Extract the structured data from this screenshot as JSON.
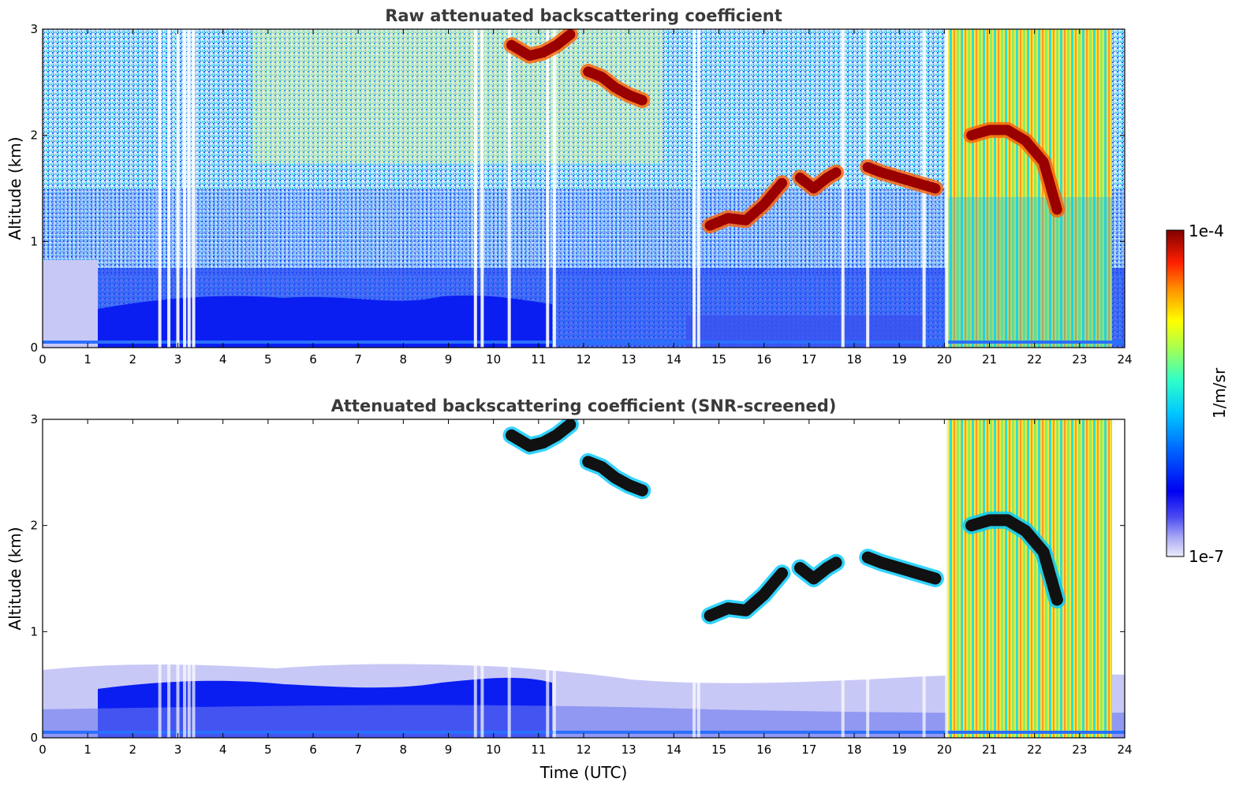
{
  "chart_data": [
    {
      "type": "heatmap",
      "title": "Raw attenuated backscattering coefficient",
      "xlabel": "",
      "ylabel": "Altitude (km)",
      "xlim": [
        0,
        24
      ],
      "ylim": [
        0,
        3
      ],
      "x_ticks": [
        "0",
        "1",
        "2",
        "3",
        "4",
        "5",
        "6",
        "7",
        "8",
        "9",
        "10",
        "11",
        "12",
        "13",
        "14",
        "15",
        "16",
        "17",
        "18",
        "19",
        "20",
        "21",
        "22",
        "23",
        "24"
      ],
      "y_ticks": [
        "0",
        "1",
        "2",
        "3"
      ],
      "gaps_utc": [
        2.6,
        2.8,
        3.0,
        3.15,
        3.25,
        3.35,
        9.6,
        9.75,
        10.35,
        11.2,
        11.35,
        14.45,
        14.55,
        17.75,
        18.3,
        19.55,
        20.05
      ],
      "cloud_layers": [
        {
          "x": [
            10.4,
            10.8,
            11.1,
            11.4,
            11.7
          ],
          "y": [
            2.85,
            2.75,
            2.78,
            2.85,
            2.95
          ]
        },
        {
          "x": [
            12.1,
            12.4,
            12.7,
            13.0,
            13.3
          ],
          "y": [
            2.6,
            2.55,
            2.45,
            2.38,
            2.33
          ]
        },
        {
          "x": [
            14.8,
            15.2,
            15.6,
            16.0,
            16.4
          ],
          "y": [
            1.15,
            1.22,
            1.2,
            1.35,
            1.55
          ]
        },
        {
          "x": [
            16.8,
            17.1,
            17.4,
            17.6
          ],
          "y": [
            1.6,
            1.5,
            1.6,
            1.65
          ]
        },
        {
          "x": [
            18.3,
            18.6,
            19.0,
            19.4,
            19.8
          ],
          "y": [
            1.7,
            1.65,
            1.6,
            1.55,
            1.5
          ]
        },
        {
          "x": [
            20.6,
            21.0,
            21.4,
            21.8,
            22.2,
            22.5
          ],
          "y": [
            2.0,
            2.05,
            2.05,
            1.95,
            1.75,
            1.3
          ]
        }
      ]
    },
    {
      "type": "heatmap",
      "title": "Attenuated backscattering coefficient (SNR-screened)",
      "xlabel": "Time (UTC)",
      "ylabel": "Altitude (km)",
      "xlim": [
        0,
        24
      ],
      "ylim": [
        0,
        3
      ],
      "x_ticks": [
        "0",
        "1",
        "2",
        "3",
        "4",
        "5",
        "6",
        "7",
        "8",
        "9",
        "10",
        "11",
        "12",
        "13",
        "14",
        "15",
        "16",
        "17",
        "18",
        "19",
        "20",
        "21",
        "22",
        "23",
        "24"
      ],
      "y_ticks": [
        "0",
        "1",
        "2",
        "3"
      ],
      "boundary_layer_km": [
        {
          "x": 0.0,
          "y": 0.5
        },
        {
          "x": 2.0,
          "y": 0.55
        },
        {
          "x": 4.0,
          "y": 0.5
        },
        {
          "x": 6.0,
          "y": 0.48
        },
        {
          "x": 8.0,
          "y": 0.42
        },
        {
          "x": 10.0,
          "y": 0.55
        },
        {
          "x": 11.0,
          "y": 0.45
        },
        {
          "x": 14.0,
          "y": 0.35
        },
        {
          "x": 17.0,
          "y": 0.35
        },
        {
          "x": 19.5,
          "y": 0.45
        },
        {
          "x": 24.0,
          "y": 0.5
        }
      ]
    }
  ],
  "colorbar": {
    "label": "1/m/sr",
    "max_label": "1e-4",
    "min_label": "1e-7",
    "scale": "log",
    "range": [
      1e-07,
      0.0001
    ],
    "colormap": "jet"
  }
}
